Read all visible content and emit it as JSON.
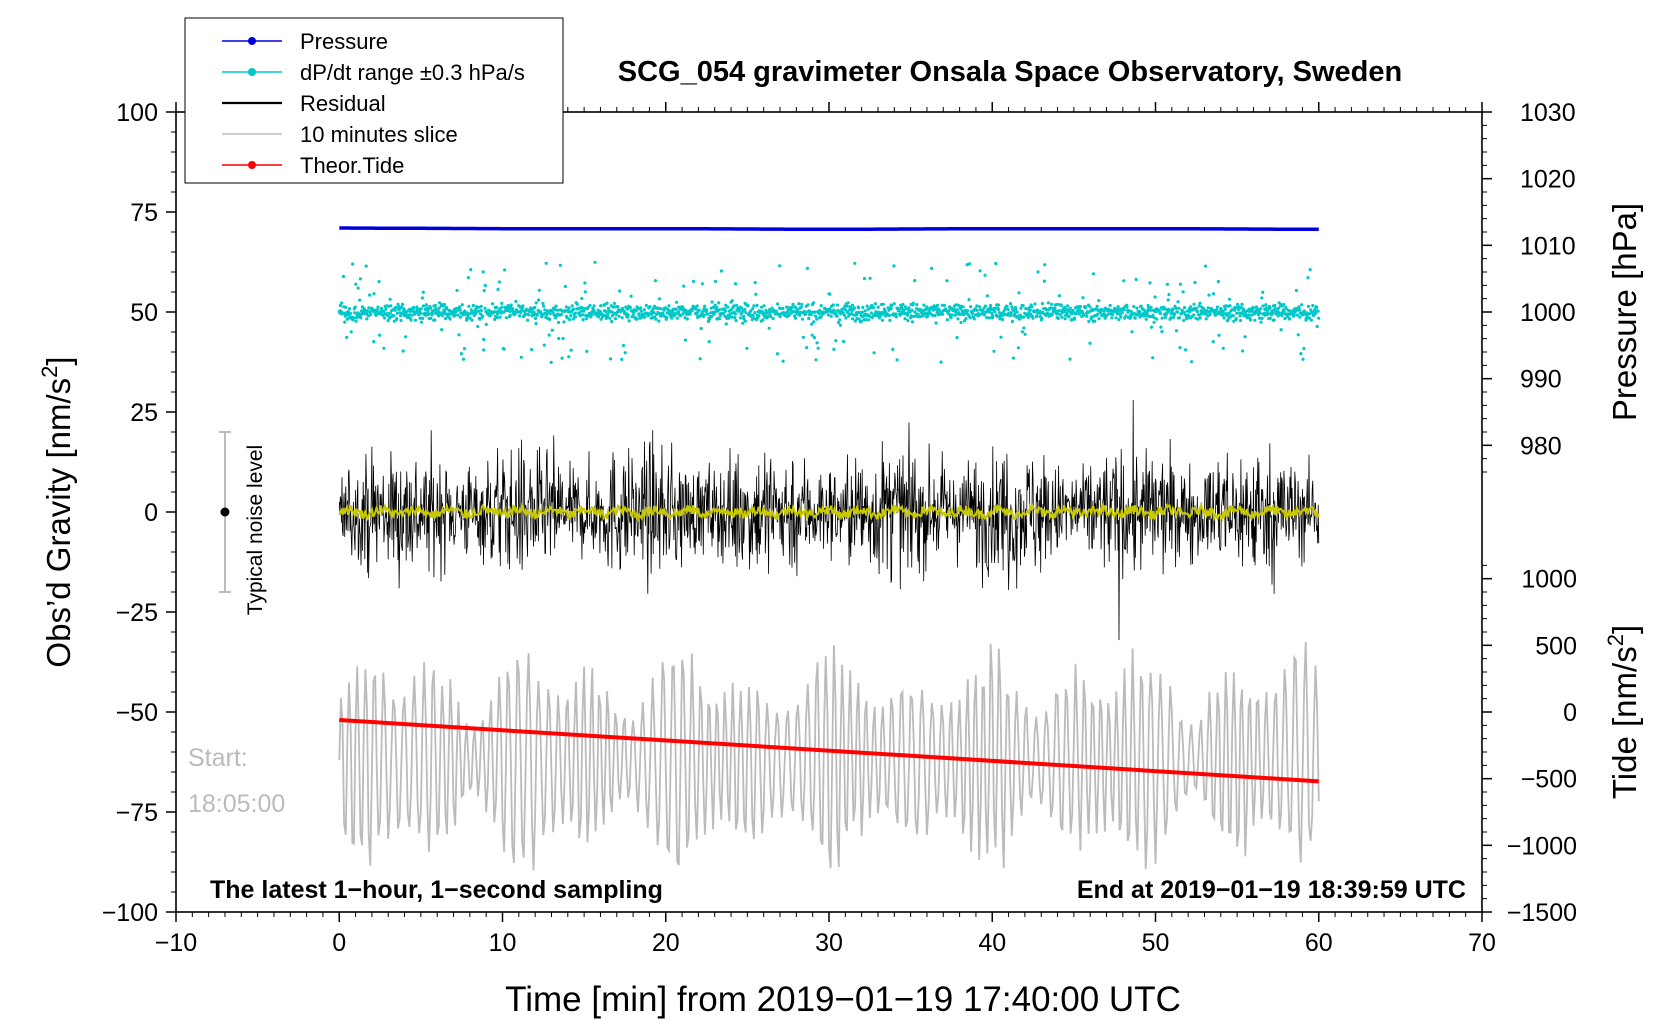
{
  "chart_data": {
    "type": "line",
    "title": "SCG_054 gravimeter Onsala Space Observatory, Sweden",
    "xlabel": "Time [min] from 2019−01−19 17:40:00 UTC",
    "ylabel": "Obs’d Gravity [nm/s²]",
    "ylabel_base": "Obs’d Gravity [nm/s",
    "ylabel_sup": "2",
    "ylabel_close": "]",
    "xlim": [
      -10,
      70
    ],
    "ylim": [
      -100,
      100
    ],
    "x_ticks": [
      -10,
      0,
      10,
      20,
      30,
      40,
      50,
      60,
      70
    ],
    "x_tick_labels": [
      "−10",
      "0",
      "10",
      "20",
      "30",
      "40",
      "50",
      "60",
      "70"
    ],
    "y_ticks": [
      -100,
      -75,
      -50,
      -25,
      0,
      25,
      50,
      75,
      100
    ],
    "y_tick_labels": [
      "−100",
      "−75",
      "−50",
      "−25",
      "0",
      "25",
      "50",
      "75",
      "100"
    ],
    "pressure_axis": {
      "label": "Pressure [hPa]",
      "ticks": [
        980,
        990,
        1000,
        1010,
        1020,
        1030
      ],
      "tick_labels": [
        "980",
        "990",
        "1000",
        "1010",
        "1020",
        "1030"
      ],
      "map": {
        "value_at_gravity_100": 1030,
        "value_at_gravity_50": 1000
      }
    },
    "tide_axis": {
      "label_base": "Tide [nm/s",
      "label_sup": "2",
      "label_close": "]",
      "ticks": [
        -1500,
        -1000,
        -500,
        0,
        500,
        1000
      ],
      "tick_labels": [
        "−1500",
        "−1000",
        "−500",
        "0",
        "500",
        "1000"
      ],
      "map": {
        "value_at_gravity_minus100": -1500,
        "value_at_gravity_minus50": 0
      }
    },
    "legend": {
      "placement": "top-left",
      "entries": [
        {
          "label": "Pressure",
          "color": "#0000dd",
          "marker": true
        },
        {
          "label": "dP/dt range ±0.3 hPa/s",
          "color": "#00c8c8",
          "marker": true
        },
        {
          "label": "Residual",
          "color": "#000000",
          "marker": false
        },
        {
          "label": "10 minutes slice",
          "color": "#bbbbbb",
          "marker": false
        },
        {
          "label": "Theor.Tide",
          "color": "#ff0000",
          "marker": true
        }
      ]
    },
    "series": [
      {
        "name": "Pressure",
        "axis": "pressure",
        "x_range": [
          0,
          60
        ],
        "values_hPa": [
          1012.6,
          1012.5,
          1012.5,
          1012.4,
          1012.5,
          1012.5,
          1012.4
        ],
        "color": "#0000dd"
      },
      {
        "name": "dP/dt range ±0.3 hPa/s",
        "axis": "gravity",
        "x_range": [
          0,
          60
        ],
        "center": 50,
        "typical_spread": 3,
        "max_excursion": 18,
        "color": "#00c8c8"
      },
      {
        "name": "Residual",
        "axis": "gravity",
        "x_range": [
          0,
          60
        ],
        "center": 0,
        "envelope": 28,
        "min": -34,
        "max": 28,
        "color": "#000000"
      },
      {
        "name": "Residual smoothed",
        "axis": "gravity",
        "x_range": [
          0,
          60
        ],
        "center": 0,
        "envelope": 2,
        "color": "#c8c800"
      },
      {
        "name": "10 minutes slice",
        "axis": "gravity",
        "x_range": [
          0,
          60
        ],
        "center": -62,
        "envelope": 35,
        "min": -92,
        "max": -27,
        "color": "#bbbbbb"
      },
      {
        "name": "Theor.Tide",
        "axis": "tide",
        "x": [
          0,
          60
        ],
        "values": [
          -60,
          -520
        ],
        "color": "#ff0000"
      }
    ],
    "annotations": {
      "noise_bar": {
        "label": "Typical noise level",
        "x": -7,
        "center": 0,
        "range": [
          -20,
          20
        ]
      },
      "start_label": "Start:",
      "start_time": "18:05:00",
      "bottom_left": "The latest 1−hour, 1−second sampling",
      "bottom_right": "End at 2019−01−19 18:39:59 UTC"
    }
  }
}
